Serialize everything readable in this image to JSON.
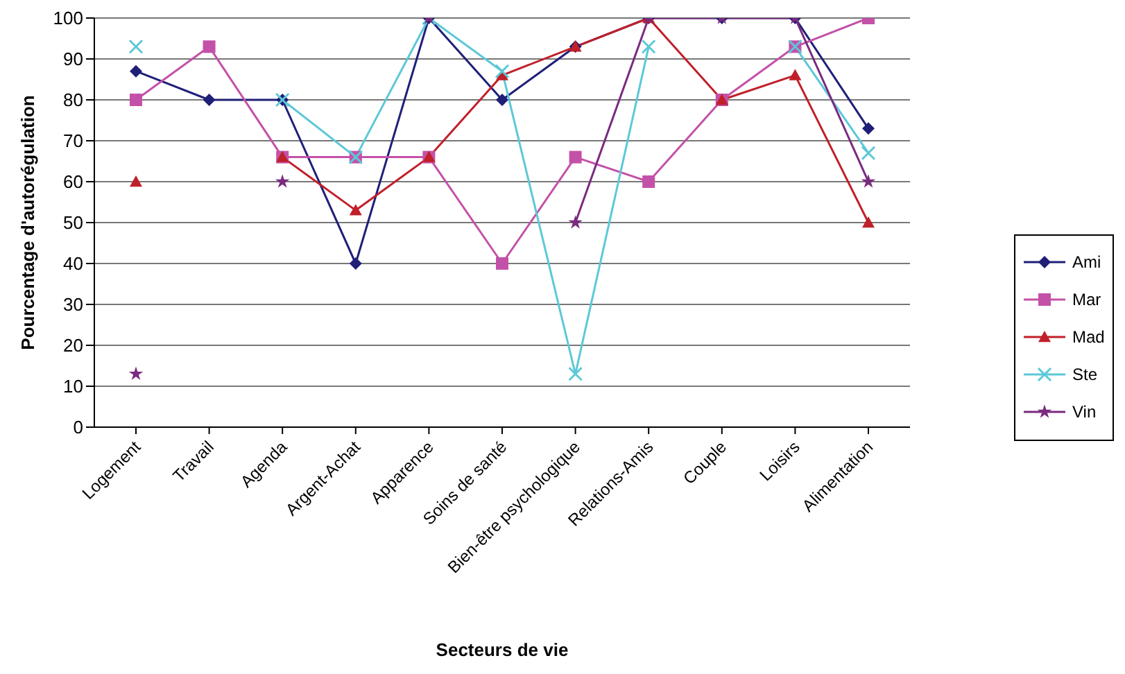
{
  "chart_data": {
    "type": "line",
    "xlabel": "Secteurs de vie",
    "ylabel": "Pourcentage d'autorégulation",
    "categories": [
      "Logement",
      "Travail",
      "Agenda",
      "Argent-Achat",
      "Apparence",
      "Soins de santé",
      "Bien-être psychologique",
      "Relations-Amis",
      "Couple",
      "Loisirs",
      "Alimentation"
    ],
    "series": [
      {
        "name": "Ami",
        "color": "#1f1f78",
        "marker": "diamond",
        "values": [
          87,
          80,
          80,
          40,
          100,
          80,
          93,
          100,
          100,
          100,
          73
        ]
      },
      {
        "name": "Mar",
        "color": "#c451a8",
        "marker": "square",
        "values": [
          80,
          93,
          66,
          66,
          66,
          40,
          66,
          60,
          80,
          93,
          100
        ]
      },
      {
        "name": "Mad",
        "color": "#c0202a",
        "marker": "triangle",
        "values": [
          60,
          null,
          66,
          53,
          66,
          86,
          93,
          100,
          80,
          86,
          50
        ]
      },
      {
        "name": "Ste",
        "color": "#5cc8d8",
        "marker": "cross",
        "values": [
          93,
          null,
          80,
          66,
          100,
          87,
          13,
          93,
          null,
          93,
          67
        ]
      },
      {
        "name": "Vin",
        "color": "#7a2a80",
        "marker": "star",
        "values": [
          13,
          null,
          60,
          null,
          100,
          null,
          50,
          100,
          100,
          100,
          60
        ]
      }
    ],
    "ylim": [
      0,
      100
    ],
    "yticks": [
      0,
      10,
      20,
      30,
      40,
      50,
      60,
      70,
      80,
      90,
      100
    ],
    "grid": "y",
    "legend": "right",
    "line_style": "solid"
  }
}
